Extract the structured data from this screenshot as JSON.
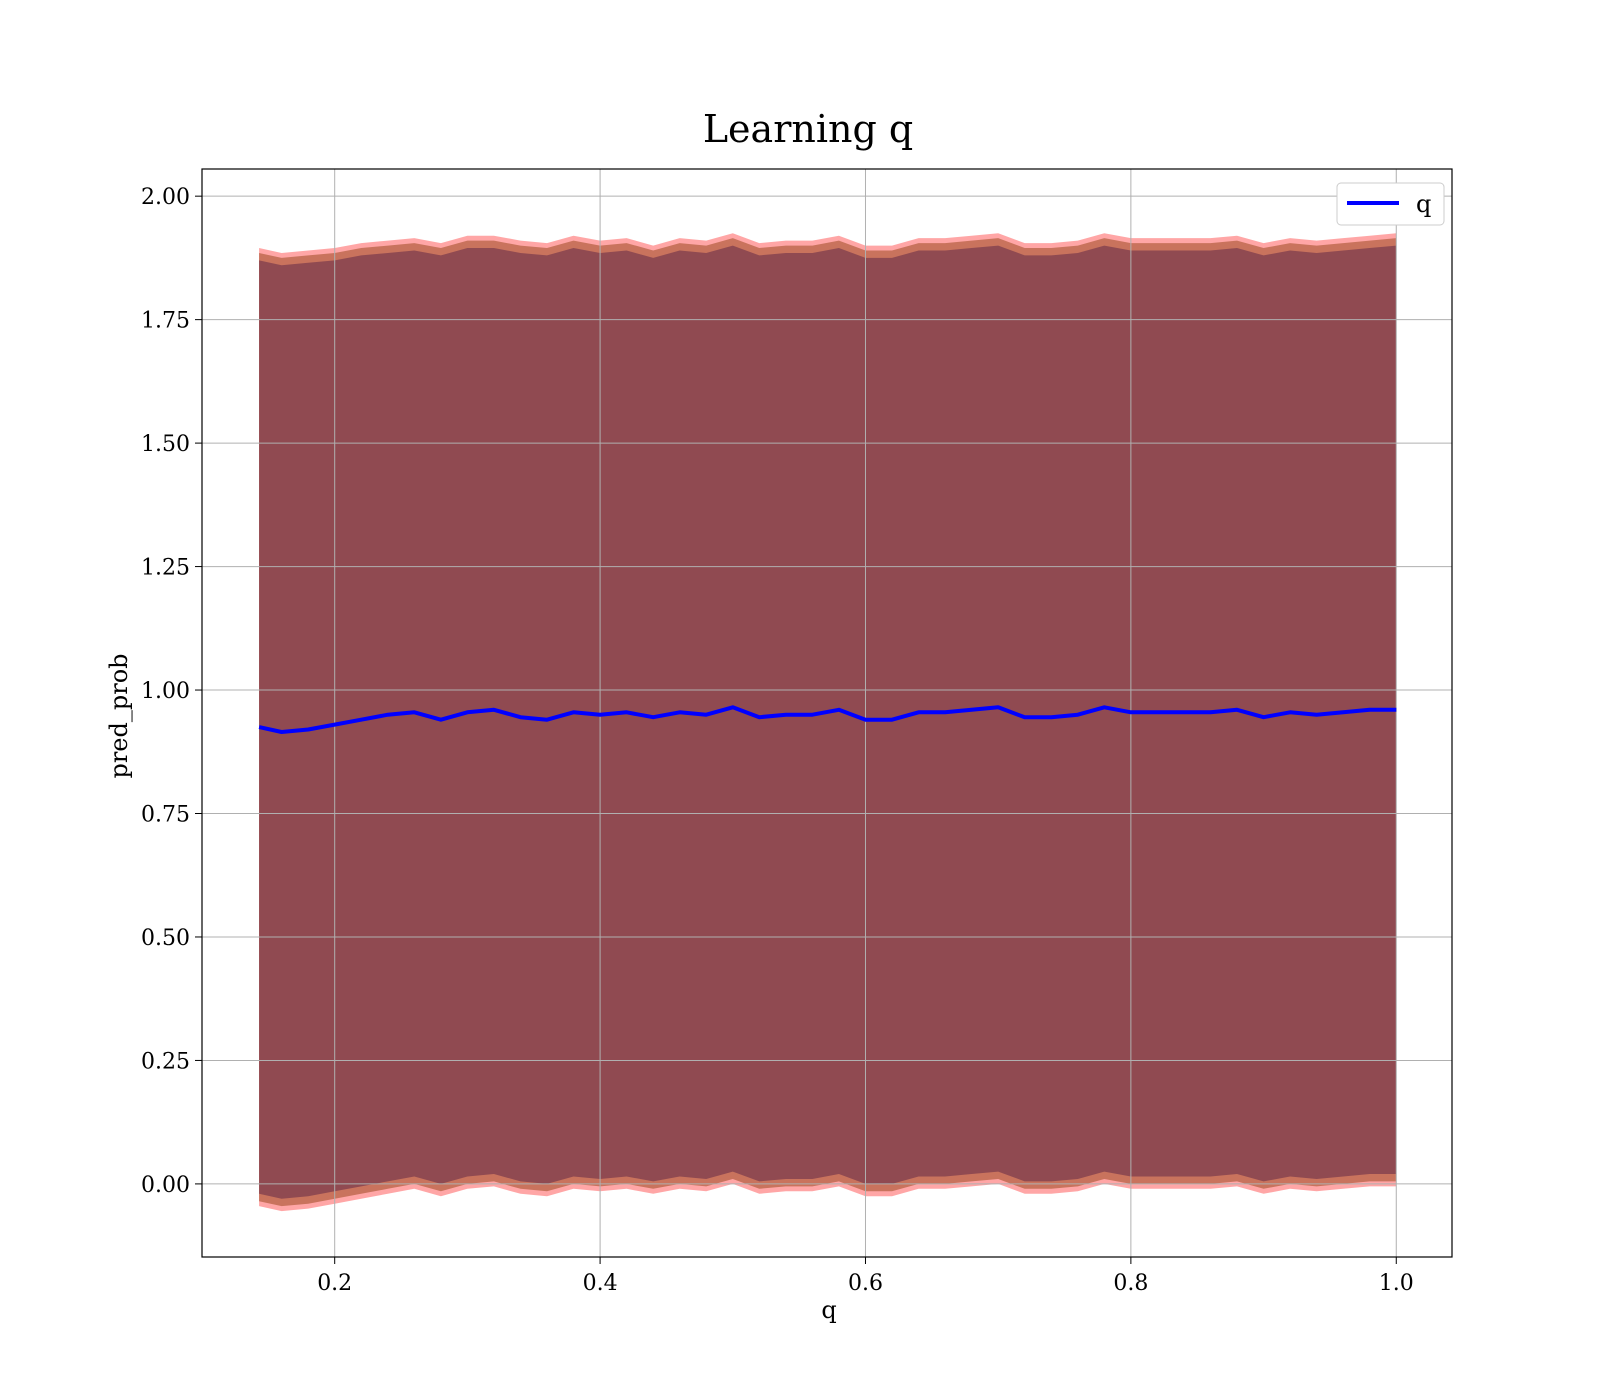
{
  "chart_data": {
    "type": "line",
    "title": "Learning q",
    "xlabel": "q",
    "ylabel": "pred_prob",
    "xlim": [
      0.1,
      1.042
    ],
    "ylim": [
      -0.148,
      2.055
    ],
    "x_ticks": [
      0.2,
      0.4,
      0.6,
      0.8,
      1.0
    ],
    "x_tick_labels": [
      "0.2",
      "0.4",
      "0.6",
      "0.8",
      "1.0"
    ],
    "y_ticks": [
      0.0,
      0.25,
      0.5,
      0.75,
      1.0,
      1.25,
      1.5,
      1.75,
      2.0
    ],
    "y_tick_labels": [
      "0.00",
      "0.25",
      "0.50",
      "0.75",
      "1.00",
      "1.25",
      "1.50",
      "1.75",
      "2.00"
    ],
    "grid": true,
    "legend": {
      "position": "top-right",
      "entries": [
        "q"
      ]
    },
    "colors": {
      "line": "#0000ff",
      "band_dark": "#7a3a4c",
      "band_outer": "#ff8080",
      "band_mid": "#c06a50",
      "grid": "#b0b0b0"
    },
    "series": [
      {
        "name": "q",
        "x": [
          0.143,
          0.16,
          0.18,
          0.2,
          0.22,
          0.24,
          0.26,
          0.28,
          0.3,
          0.32,
          0.34,
          0.36,
          0.38,
          0.4,
          0.42,
          0.44,
          0.46,
          0.48,
          0.5,
          0.52,
          0.54,
          0.56,
          0.58,
          0.6,
          0.62,
          0.64,
          0.66,
          0.68,
          0.7,
          0.72,
          0.74,
          0.76,
          0.78,
          0.8,
          0.82,
          0.84,
          0.86,
          0.88,
          0.9,
          0.92,
          0.94,
          0.96,
          0.98,
          1.0
        ],
        "values": [
          0.925,
          0.915,
          0.92,
          0.93,
          0.94,
          0.95,
          0.955,
          0.94,
          0.955,
          0.96,
          0.945,
          0.94,
          0.955,
          0.95,
          0.955,
          0.945,
          0.955,
          0.95,
          0.965,
          0.945,
          0.95,
          0.95,
          0.96,
          0.94,
          0.94,
          0.955,
          0.955,
          0.96,
          0.965,
          0.945,
          0.945,
          0.95,
          0.965,
          0.955,
          0.955,
          0.955,
          0.955,
          0.96,
          0.945,
          0.955,
          0.95,
          0.955,
          0.96,
          0.96
        ],
        "band_upper": [
          1.88,
          1.87,
          1.875,
          1.88,
          1.89,
          1.895,
          1.9,
          1.89,
          1.905,
          1.905,
          1.895,
          1.89,
          1.905,
          1.895,
          1.9,
          1.885,
          1.9,
          1.895,
          1.91,
          1.89,
          1.895,
          1.895,
          1.905,
          1.885,
          1.885,
          1.9,
          1.9,
          1.905,
          1.91,
          1.89,
          1.89,
          1.895,
          1.91,
          1.9,
          1.9,
          1.9,
          1.9,
          1.905,
          1.89,
          1.9,
          1.895,
          1.9,
          1.905,
          1.91
        ],
        "band_lower": [
          -0.03,
          -0.04,
          -0.035,
          -0.025,
          -0.015,
          -0.005,
          0.005,
          -0.01,
          0.005,
          0.01,
          -0.005,
          -0.01,
          0.005,
          0.0,
          0.005,
          -0.005,
          0.005,
          0.0,
          0.015,
          -0.005,
          0.0,
          0.0,
          0.01,
          -0.01,
          -0.01,
          0.005,
          0.005,
          0.01,
          0.015,
          -0.005,
          -0.005,
          0.0,
          0.015,
          0.005,
          0.005,
          0.005,
          0.005,
          0.01,
          -0.005,
          0.005,
          0.0,
          0.005,
          0.01,
          0.01
        ]
      }
    ]
  }
}
